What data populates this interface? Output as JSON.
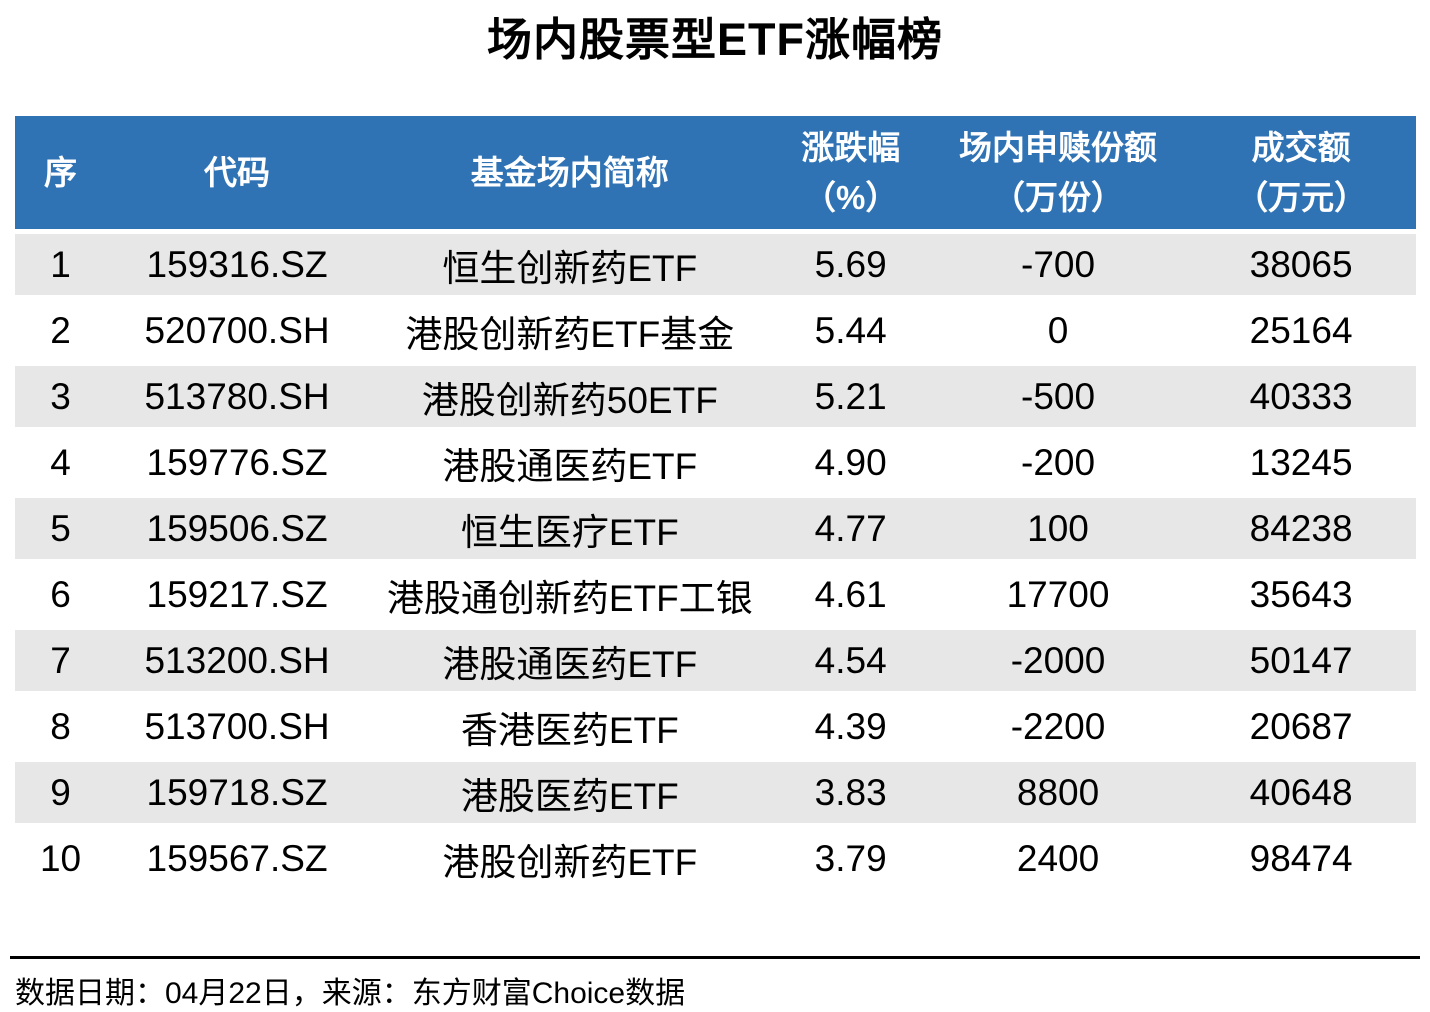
{
  "title": "场内股票型ETF涨幅榜",
  "header": {
    "columns": [
      {
        "label": "序",
        "sub": ""
      },
      {
        "label": "代码",
        "sub": ""
      },
      {
        "label": "基金场内简称",
        "sub": ""
      },
      {
        "label": "涨跌幅",
        "sub": "（%）"
      },
      {
        "label": "场内申赎份额",
        "sub": "（万份）"
      },
      {
        "label": "成交额",
        "sub": "（万元）"
      }
    ]
  },
  "chart_data": {
    "type": "table",
    "title": "场内股票型ETF涨幅榜",
    "columns": [
      "序",
      "代码",
      "基金场内简称",
      "涨跌幅（%）",
      "场内申赎份额（万份）",
      "成交额（万元）"
    ],
    "rows": [
      [
        "1",
        "159316.SZ",
        "恒生创新药ETF",
        "5.69",
        "-700",
        "38065"
      ],
      [
        "2",
        "520700.SH",
        "港股创新药ETF基金",
        "5.44",
        "0",
        "25164"
      ],
      [
        "3",
        "513780.SH",
        "港股创新药50ETF",
        "5.21",
        "-500",
        "40333"
      ],
      [
        "4",
        "159776.SZ",
        "港股通医药ETF",
        "4.90",
        "-200",
        "13245"
      ],
      [
        "5",
        "159506.SZ",
        "恒生医疗ETF",
        "4.77",
        "100",
        "84238"
      ],
      [
        "6",
        "159217.SZ",
        "港股通创新药ETF工银",
        "4.61",
        "17700",
        "35643"
      ],
      [
        "7",
        "513200.SH",
        "港股通医药ETF",
        "4.54",
        "-2000",
        "50147"
      ],
      [
        "8",
        "513700.SH",
        "香港医药ETF",
        "4.39",
        "-2200",
        "20687"
      ],
      [
        "9",
        "159718.SZ",
        "港股医药ETF",
        "3.83",
        "8800",
        "40648"
      ],
      [
        "10",
        "159567.SZ",
        "港股创新药ETF",
        "3.79",
        "2400",
        "98474"
      ]
    ]
  },
  "footer": {
    "note": "数据日期：04月22日，来源：东方财富Choice数据"
  },
  "colors": {
    "header_bg": "#3073B4",
    "row_alt_bg": "#E7E7E7",
    "header_text": "#FFFFFF",
    "text": "#000000",
    "divider": "#000000"
  }
}
